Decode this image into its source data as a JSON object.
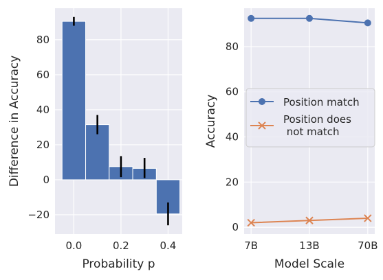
{
  "chart_data": [
    {
      "type": "bar",
      "xlabel": "Probability p",
      "ylabel": "Difference in Accuracy",
      "xlim": [
        -0.08,
        0.46
      ],
      "ylim": [
        -31,
        98
      ],
      "xticks": [
        0.0,
        0.2,
        0.4
      ],
      "xtick_labels": [
        "0.0",
        "0.2",
        "0.4"
      ],
      "yticks": [
        -20,
        0,
        20,
        40,
        60,
        80
      ],
      "ytick_labels": [
        "−20",
        "0",
        "20",
        "40",
        "60",
        "80"
      ],
      "grid": true,
      "bar_width": 0.1,
      "x": [
        0.0,
        0.1,
        0.2,
        0.3,
        0.4
      ],
      "values": [
        90.5,
        31.5,
        7.5,
        6.5,
        -19.5
      ],
      "error": [
        [
          88,
          93
        ],
        [
          26,
          37
        ],
        [
          1.5,
          13.5
        ],
        [
          1,
          12.5
        ],
        [
          -26,
          -13
        ]
      ],
      "colors": {
        "bar": "#4c72b0",
        "error": "#000000",
        "background": "#eaeaf2",
        "grid": "#ffffff"
      }
    },
    {
      "type": "line",
      "xlabel": "Model Scale",
      "ylabel": "Accuracy",
      "categories": [
        "7B",
        "13B",
        "70B"
      ],
      "ylim": [
        -3,
        97
      ],
      "yticks": [
        0,
        20,
        40,
        60,
        80
      ],
      "ytick_labels": [
        "0",
        "20",
        "40",
        "60",
        "80"
      ],
      "grid": true,
      "legend_position": "center",
      "series": [
        {
          "name": "Position match",
          "values": [
            92.5,
            92.5,
            90.5
          ],
          "marker": "circle",
          "color": "#4c72b0"
        },
        {
          "name": "Position does\n not match",
          "values": [
            2,
            3,
            4
          ],
          "marker": "x",
          "color": "#dd8452"
        }
      ],
      "colors": {
        "background": "#eaeaf2",
        "grid": "#ffffff"
      }
    }
  ]
}
